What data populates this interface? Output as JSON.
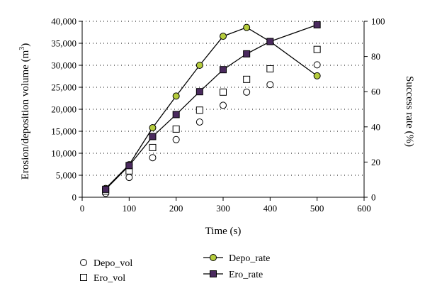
{
  "chart_data": {
    "type": "scatter",
    "x": [
      50,
      100,
      150,
      200,
      250,
      300,
      350,
      400,
      500
    ],
    "xlabel": "Time (s)",
    "ylabel_left": "Erosion/deposition volume (m",
    "ylabel_left_sup": "3",
    "ylabel_left_tail": ")",
    "ylabel_right": "Success rate (%)",
    "xlim": [
      0,
      600
    ],
    "ylim_left": [
      0,
      40000
    ],
    "ylim_right": [
      0,
      100
    ],
    "xticks": [
      "0",
      "100",
      "200",
      "300",
      "400",
      "500",
      "600"
    ],
    "yticks_left": [
      "0",
      "5,000",
      "10,000",
      "15,000",
      "20,000",
      "25,000",
      "30,000",
      "35,000",
      "40,000"
    ],
    "yticks_right": [
      "0",
      "20",
      "40",
      "60",
      "80",
      "100"
    ],
    "grid": "horizontal dotted",
    "legend_position": "bottom",
    "series": [
      {
        "name": "Depo_vol",
        "axis": "left",
        "marker": "circle",
        "line": false,
        "values": [
          900,
          4500,
          9000,
          13100,
          17100,
          20900,
          23900,
          25600,
          30100
        ]
      },
      {
        "name": "Ero_vol",
        "axis": "left",
        "marker": "square",
        "line": false,
        "values": [
          1400,
          6000,
          11300,
          15500,
          19800,
          23900,
          26800,
          29200,
          33600
        ]
      },
      {
        "name": "Depo_rate",
        "axis": "right",
        "marker": "circle",
        "line": true,
        "color": "#b5cc3c",
        "values": [
          5,
          18.5,
          39.5,
          57.5,
          75,
          91.5,
          96.5,
          88.5,
          69
        ]
      },
      {
        "name": "Ero_rate",
        "axis": "right",
        "marker": "square",
        "line": true,
        "color": "#4a2a5e",
        "values": [
          4.5,
          18,
          34.5,
          47,
          60,
          72.5,
          81.5,
          88.5,
          98
        ]
      }
    ]
  }
}
